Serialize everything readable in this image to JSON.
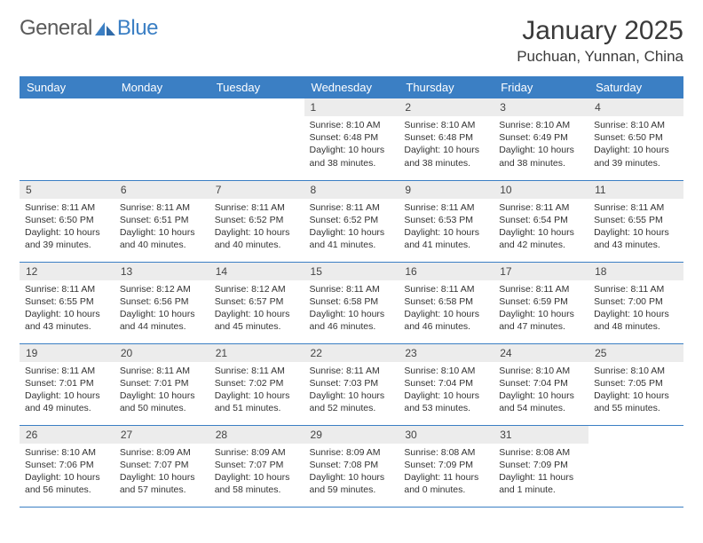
{
  "logo": {
    "text1": "General",
    "text2": "Blue"
  },
  "title": "January 2025",
  "location": "Puchuan, Yunnan, China",
  "theme": {
    "header_bg": "#3b7fc4",
    "header_fg": "#ffffff",
    "daynum_bg": "#ececec",
    "border_color": "#3b7fc4",
    "text_color": "#333333",
    "background": "#ffffff",
    "title_fontsize": 30,
    "location_fontsize": 17,
    "dayheader_fontsize": 13,
    "body_fontsize": 10.5
  },
  "day_headers": [
    "Sunday",
    "Monday",
    "Tuesday",
    "Wednesday",
    "Thursday",
    "Friday",
    "Saturday"
  ],
  "weeks": [
    [
      null,
      null,
      null,
      {
        "n": "1",
        "sunrise": "8:10 AM",
        "sunset": "6:48 PM",
        "daylight": "10 hours and 38 minutes."
      },
      {
        "n": "2",
        "sunrise": "8:10 AM",
        "sunset": "6:48 PM",
        "daylight": "10 hours and 38 minutes."
      },
      {
        "n": "3",
        "sunrise": "8:10 AM",
        "sunset": "6:49 PM",
        "daylight": "10 hours and 38 minutes."
      },
      {
        "n": "4",
        "sunrise": "8:10 AM",
        "sunset": "6:50 PM",
        "daylight": "10 hours and 39 minutes."
      }
    ],
    [
      {
        "n": "5",
        "sunrise": "8:11 AM",
        "sunset": "6:50 PM",
        "daylight": "10 hours and 39 minutes."
      },
      {
        "n": "6",
        "sunrise": "8:11 AM",
        "sunset": "6:51 PM",
        "daylight": "10 hours and 40 minutes."
      },
      {
        "n": "7",
        "sunrise": "8:11 AM",
        "sunset": "6:52 PM",
        "daylight": "10 hours and 40 minutes."
      },
      {
        "n": "8",
        "sunrise": "8:11 AM",
        "sunset": "6:52 PM",
        "daylight": "10 hours and 41 minutes."
      },
      {
        "n": "9",
        "sunrise": "8:11 AM",
        "sunset": "6:53 PM",
        "daylight": "10 hours and 41 minutes."
      },
      {
        "n": "10",
        "sunrise": "8:11 AM",
        "sunset": "6:54 PM",
        "daylight": "10 hours and 42 minutes."
      },
      {
        "n": "11",
        "sunrise": "8:11 AM",
        "sunset": "6:55 PM",
        "daylight": "10 hours and 43 minutes."
      }
    ],
    [
      {
        "n": "12",
        "sunrise": "8:11 AM",
        "sunset": "6:55 PM",
        "daylight": "10 hours and 43 minutes."
      },
      {
        "n": "13",
        "sunrise": "8:12 AM",
        "sunset": "6:56 PM",
        "daylight": "10 hours and 44 minutes."
      },
      {
        "n": "14",
        "sunrise": "8:12 AM",
        "sunset": "6:57 PM",
        "daylight": "10 hours and 45 minutes."
      },
      {
        "n": "15",
        "sunrise": "8:11 AM",
        "sunset": "6:58 PM",
        "daylight": "10 hours and 46 minutes."
      },
      {
        "n": "16",
        "sunrise": "8:11 AM",
        "sunset": "6:58 PM",
        "daylight": "10 hours and 46 minutes."
      },
      {
        "n": "17",
        "sunrise": "8:11 AM",
        "sunset": "6:59 PM",
        "daylight": "10 hours and 47 minutes."
      },
      {
        "n": "18",
        "sunrise": "8:11 AM",
        "sunset": "7:00 PM",
        "daylight": "10 hours and 48 minutes."
      }
    ],
    [
      {
        "n": "19",
        "sunrise": "8:11 AM",
        "sunset": "7:01 PM",
        "daylight": "10 hours and 49 minutes."
      },
      {
        "n": "20",
        "sunrise": "8:11 AM",
        "sunset": "7:01 PM",
        "daylight": "10 hours and 50 minutes."
      },
      {
        "n": "21",
        "sunrise": "8:11 AM",
        "sunset": "7:02 PM",
        "daylight": "10 hours and 51 minutes."
      },
      {
        "n": "22",
        "sunrise": "8:11 AM",
        "sunset": "7:03 PM",
        "daylight": "10 hours and 52 minutes."
      },
      {
        "n": "23",
        "sunrise": "8:10 AM",
        "sunset": "7:04 PM",
        "daylight": "10 hours and 53 minutes."
      },
      {
        "n": "24",
        "sunrise": "8:10 AM",
        "sunset": "7:04 PM",
        "daylight": "10 hours and 54 minutes."
      },
      {
        "n": "25",
        "sunrise": "8:10 AM",
        "sunset": "7:05 PM",
        "daylight": "10 hours and 55 minutes."
      }
    ],
    [
      {
        "n": "26",
        "sunrise": "8:10 AM",
        "sunset": "7:06 PM",
        "daylight": "10 hours and 56 minutes."
      },
      {
        "n": "27",
        "sunrise": "8:09 AM",
        "sunset": "7:07 PM",
        "daylight": "10 hours and 57 minutes."
      },
      {
        "n": "28",
        "sunrise": "8:09 AM",
        "sunset": "7:07 PM",
        "daylight": "10 hours and 58 minutes."
      },
      {
        "n": "29",
        "sunrise": "8:09 AM",
        "sunset": "7:08 PM",
        "daylight": "10 hours and 59 minutes."
      },
      {
        "n": "30",
        "sunrise": "8:08 AM",
        "sunset": "7:09 PM",
        "daylight": "11 hours and 0 minutes."
      },
      {
        "n": "31",
        "sunrise": "8:08 AM",
        "sunset": "7:09 PM",
        "daylight": "11 hours and 1 minute."
      },
      null
    ]
  ],
  "labels": {
    "sunrise": "Sunrise:",
    "sunset": "Sunset:",
    "daylight": "Daylight:"
  }
}
